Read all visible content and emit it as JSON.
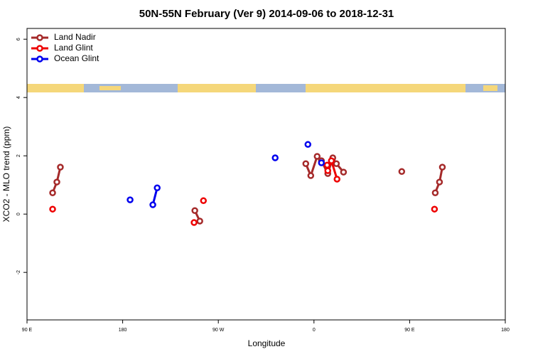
{
  "chart_data": {
    "type": "line",
    "title": "50N-55N February (Ver 9)   2014-09-06 to 2018-12-31",
    "x_label": "Longitude",
    "y_label": "XCO2 - MLO trend (ppm)",
    "xlim": [
      90,
      540
    ],
    "xticks": [
      {
        "value": 90,
        "label": "90 E"
      },
      {
        "value": 180,
        "label": "180"
      },
      {
        "value": 270,
        "label": "90 W"
      },
      {
        "value": 360,
        "label": "0"
      },
      {
        "value": 450,
        "label": "90 E"
      },
      {
        "value": 540,
        "label": "180"
      }
    ],
    "ylim": [
      -3.63,
      6.37
    ],
    "yticks": [
      -2,
      0,
      2,
      4,
      6
    ],
    "legend": "top-left",
    "series": [
      {
        "name": "Land Nadir",
        "color": "#a52a2a",
        "x": [
          114.1,
          118.1,
          121.4,
          null,
          247.9,
          252.6,
          null,
          352.3,
          357.0,
          363.0,
          367.0,
          373.0,
          377.7,
          381.1,
          387.8,
          null,
          442.6,
          null,
          474.1,
          478.1,
          480.8
        ],
        "values": [
          0.73,
          1.1,
          1.61,
          null,
          0.12,
          -0.24,
          null,
          1.73,
          1.32,
          1.98,
          1.83,
          1.39,
          1.93,
          1.73,
          1.44,
          null,
          1.46,
          null,
          0.73,
          1.1,
          1.61
        ]
      },
      {
        "name": "Land Glint",
        "color": "#ee0000",
        "x": [
          114.1,
          null,
          247.2,
          null,
          256.0,
          null,
          372.4,
          373.0,
          376.4,
          381.7,
          null,
          473.4
        ],
        "values": [
          0.17,
          null,
          -0.29,
          null,
          0.46,
          null,
          1.68,
          1.49,
          1.83,
          1.2,
          null,
          0.17
        ]
      },
      {
        "name": "Ocean Glint",
        "color": "#0000ee",
        "x": [
          187.0,
          null,
          208.4,
          212.5,
          null,
          323.5,
          null,
          354.3,
          null,
          367.0
        ],
        "values": [
          0.49,
          null,
          0.32,
          0.9,
          null,
          1.93,
          null,
          2.39,
          null,
          1.76
        ]
      }
    ]
  }
}
